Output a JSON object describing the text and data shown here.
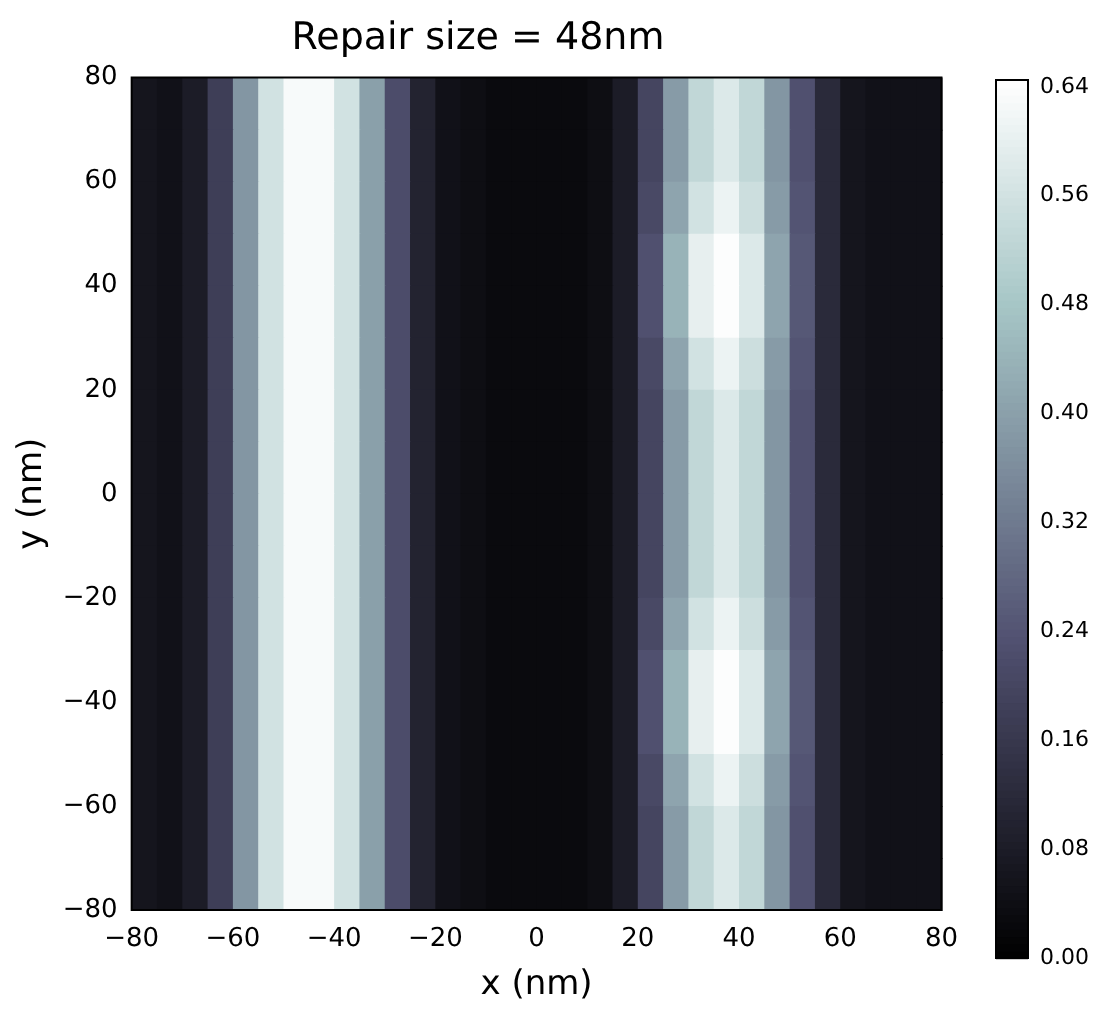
{
  "chart_data": {
    "type": "heatmap",
    "title": "Repair size = 48nm",
    "xlabel": "x (nm)",
    "ylabel": "y (nm)",
    "x": [
      -77.5,
      -72.5,
      -67.5,
      -62.5,
      -57.5,
      -52.5,
      -47.5,
      -42.5,
      -37.5,
      -32.5,
      -27.5,
      -22.5,
      -17.5,
      -12.5,
      -7.5,
      -2.5,
      2.5,
      7.5,
      12.5,
      17.5,
      22.5,
      27.5,
      32.5,
      37.5,
      42.5,
      47.5,
      52.5,
      57.5,
      62.5,
      67.5,
      72.5,
      77.5
    ],
    "y": [
      75,
      65,
      55,
      45,
      35,
      25,
      15,
      5,
      -5,
      -15,
      -25,
      -35,
      -45,
      -55,
      -65,
      -75
    ],
    "cells": [
      [
        0.06,
        0.05,
        0.08,
        0.18,
        0.38,
        0.56,
        0.63,
        0.63,
        0.56,
        0.4,
        0.22,
        0.1,
        0.05,
        0.04,
        0.03,
        0.03,
        0.03,
        0.03,
        0.04,
        0.08,
        0.2,
        0.39,
        0.53,
        0.58,
        0.53,
        0.38,
        0.23,
        0.12,
        0.06,
        0.05,
        0.05,
        0.05
      ],
      [
        0.06,
        0.05,
        0.08,
        0.18,
        0.38,
        0.56,
        0.63,
        0.63,
        0.56,
        0.4,
        0.22,
        0.1,
        0.05,
        0.04,
        0.03,
        0.03,
        0.03,
        0.03,
        0.04,
        0.08,
        0.2,
        0.39,
        0.53,
        0.58,
        0.53,
        0.38,
        0.23,
        0.12,
        0.06,
        0.05,
        0.05,
        0.05
      ],
      [
        0.06,
        0.05,
        0.08,
        0.18,
        0.38,
        0.56,
        0.63,
        0.63,
        0.56,
        0.4,
        0.22,
        0.1,
        0.05,
        0.04,
        0.03,
        0.03,
        0.03,
        0.03,
        0.04,
        0.08,
        0.21,
        0.41,
        0.56,
        0.61,
        0.55,
        0.39,
        0.24,
        0.12,
        0.06,
        0.05,
        0.05,
        0.05
      ],
      [
        0.06,
        0.05,
        0.08,
        0.18,
        0.38,
        0.56,
        0.63,
        0.63,
        0.56,
        0.4,
        0.22,
        0.1,
        0.05,
        0.04,
        0.03,
        0.03,
        0.03,
        0.03,
        0.04,
        0.08,
        0.23,
        0.44,
        0.6,
        0.64,
        0.58,
        0.41,
        0.25,
        0.12,
        0.06,
        0.05,
        0.05,
        0.05
      ],
      [
        0.06,
        0.05,
        0.08,
        0.18,
        0.38,
        0.56,
        0.63,
        0.63,
        0.56,
        0.4,
        0.22,
        0.1,
        0.05,
        0.04,
        0.03,
        0.03,
        0.03,
        0.03,
        0.04,
        0.08,
        0.23,
        0.44,
        0.6,
        0.64,
        0.58,
        0.41,
        0.25,
        0.12,
        0.06,
        0.05,
        0.05,
        0.05
      ],
      [
        0.06,
        0.05,
        0.08,
        0.18,
        0.38,
        0.56,
        0.63,
        0.63,
        0.56,
        0.4,
        0.22,
        0.1,
        0.05,
        0.04,
        0.03,
        0.03,
        0.03,
        0.03,
        0.04,
        0.08,
        0.21,
        0.41,
        0.56,
        0.61,
        0.55,
        0.39,
        0.24,
        0.12,
        0.06,
        0.05,
        0.05,
        0.05
      ],
      [
        0.06,
        0.05,
        0.08,
        0.18,
        0.38,
        0.56,
        0.63,
        0.63,
        0.56,
        0.4,
        0.22,
        0.1,
        0.05,
        0.04,
        0.03,
        0.03,
        0.03,
        0.03,
        0.04,
        0.08,
        0.2,
        0.39,
        0.53,
        0.58,
        0.53,
        0.38,
        0.23,
        0.12,
        0.06,
        0.05,
        0.05,
        0.05
      ],
      [
        0.06,
        0.05,
        0.08,
        0.18,
        0.38,
        0.56,
        0.63,
        0.63,
        0.56,
        0.4,
        0.22,
        0.1,
        0.05,
        0.04,
        0.03,
        0.03,
        0.03,
        0.03,
        0.04,
        0.08,
        0.2,
        0.39,
        0.53,
        0.58,
        0.53,
        0.38,
        0.23,
        0.12,
        0.06,
        0.05,
        0.05,
        0.05
      ],
      [
        0.06,
        0.05,
        0.08,
        0.18,
        0.38,
        0.56,
        0.63,
        0.63,
        0.56,
        0.4,
        0.22,
        0.1,
        0.05,
        0.04,
        0.03,
        0.03,
        0.03,
        0.03,
        0.04,
        0.08,
        0.2,
        0.39,
        0.53,
        0.58,
        0.53,
        0.38,
        0.23,
        0.12,
        0.06,
        0.05,
        0.05,
        0.05
      ],
      [
        0.06,
        0.05,
        0.08,
        0.18,
        0.38,
        0.56,
        0.63,
        0.63,
        0.56,
        0.4,
        0.22,
        0.1,
        0.05,
        0.04,
        0.03,
        0.03,
        0.03,
        0.03,
        0.04,
        0.08,
        0.2,
        0.39,
        0.53,
        0.58,
        0.53,
        0.38,
        0.23,
        0.12,
        0.06,
        0.05,
        0.05,
        0.05
      ],
      [
        0.06,
        0.05,
        0.08,
        0.18,
        0.38,
        0.56,
        0.63,
        0.63,
        0.56,
        0.4,
        0.22,
        0.1,
        0.05,
        0.04,
        0.03,
        0.03,
        0.03,
        0.03,
        0.04,
        0.08,
        0.21,
        0.41,
        0.56,
        0.61,
        0.55,
        0.39,
        0.24,
        0.12,
        0.06,
        0.05,
        0.05,
        0.05
      ],
      [
        0.06,
        0.05,
        0.08,
        0.18,
        0.38,
        0.56,
        0.63,
        0.63,
        0.56,
        0.4,
        0.22,
        0.1,
        0.05,
        0.04,
        0.03,
        0.03,
        0.03,
        0.03,
        0.04,
        0.08,
        0.23,
        0.44,
        0.6,
        0.64,
        0.58,
        0.41,
        0.25,
        0.12,
        0.06,
        0.05,
        0.05,
        0.05
      ],
      [
        0.06,
        0.05,
        0.08,
        0.18,
        0.38,
        0.56,
        0.63,
        0.63,
        0.56,
        0.4,
        0.22,
        0.1,
        0.05,
        0.04,
        0.03,
        0.03,
        0.03,
        0.03,
        0.04,
        0.08,
        0.23,
        0.44,
        0.6,
        0.64,
        0.58,
        0.41,
        0.25,
        0.12,
        0.06,
        0.05,
        0.05,
        0.05
      ],
      [
        0.06,
        0.05,
        0.08,
        0.18,
        0.38,
        0.56,
        0.63,
        0.63,
        0.56,
        0.4,
        0.22,
        0.1,
        0.05,
        0.04,
        0.03,
        0.03,
        0.03,
        0.03,
        0.04,
        0.08,
        0.21,
        0.41,
        0.56,
        0.61,
        0.55,
        0.39,
        0.24,
        0.12,
        0.06,
        0.05,
        0.05,
        0.05
      ],
      [
        0.06,
        0.05,
        0.08,
        0.18,
        0.38,
        0.56,
        0.63,
        0.63,
        0.56,
        0.4,
        0.22,
        0.1,
        0.05,
        0.04,
        0.03,
        0.03,
        0.03,
        0.03,
        0.04,
        0.08,
        0.2,
        0.39,
        0.53,
        0.58,
        0.53,
        0.38,
        0.23,
        0.12,
        0.06,
        0.05,
        0.05,
        0.05
      ],
      [
        0.06,
        0.05,
        0.08,
        0.18,
        0.38,
        0.56,
        0.63,
        0.63,
        0.56,
        0.4,
        0.22,
        0.1,
        0.05,
        0.04,
        0.03,
        0.03,
        0.03,
        0.03,
        0.04,
        0.08,
        0.2,
        0.39,
        0.53,
        0.58,
        0.53,
        0.38,
        0.23,
        0.12,
        0.06,
        0.05,
        0.05,
        0.05
      ]
    ],
    "xlim": [
      -80,
      80
    ],
    "ylim": [
      -80,
      80
    ],
    "xticks": [
      {
        "value": -80,
        "label": "−80"
      },
      {
        "value": -60,
        "label": "−60"
      },
      {
        "value": -40,
        "label": "−40"
      },
      {
        "value": -20,
        "label": "−20"
      },
      0,
      20,
      40,
      60,
      80
    ],
    "yticks": [
      {
        "value": -80,
        "label": "−80"
      },
      {
        "value": -60,
        "label": "−60"
      },
      {
        "value": -40,
        "label": "−40"
      },
      {
        "value": -20,
        "label": "−20"
      },
      0,
      20,
      40,
      60,
      80
    ],
    "clim": [
      0,
      0.645
    ],
    "cticks": [
      {
        "value": 0,
        "label": "0.00"
      },
      {
        "value": 0.08,
        "label": "0.08"
      },
      {
        "value": 0.16,
        "label": "0.16"
      },
      {
        "value": 0.24,
        "label": "0.24"
      },
      {
        "value": 0.32,
        "label": "0.32"
      },
      {
        "value": 0.4,
        "label": "0.40"
      },
      {
        "value": 0.48,
        "label": "0.48"
      },
      {
        "value": 0.56,
        "label": "0.56"
      },
      {
        "value": 0.64,
        "label": "0.64"
      }
    ]
  }
}
